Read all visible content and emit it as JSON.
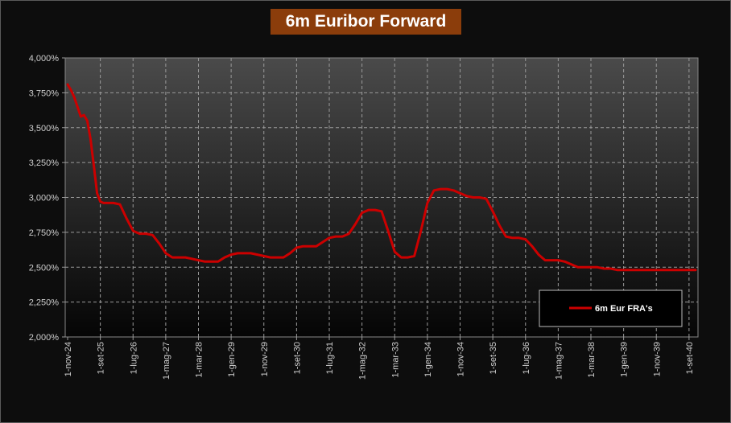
{
  "chart_data": {
    "type": "line",
    "title": "6m Euribor Forward",
    "xlabel": "",
    "ylabel": "",
    "ylim": [
      0.02,
      0.04
    ],
    "y_tick_labels": [
      "2,000%",
      "2,250%",
      "2,500%",
      "2,750%",
      "3,000%",
      "3,250%",
      "3,500%",
      "3,750%",
      "4,000%"
    ],
    "x_tick_labels": [
      "1-nov-24",
      "1-set-25",
      "1-lug-26",
      "1-mag-27",
      "1-mar-28",
      "1-gen-29",
      "1-nov-29",
      "1-set-30",
      "1-lug-31",
      "1-mag-32",
      "1-mar-33",
      "1-gen-34",
      "1-nov-34",
      "1-set-35",
      "1-lug-36",
      "1-mag-37",
      "1-mar-38",
      "1-gen-39",
      "1-nov-39",
      "1-set-40"
    ],
    "grid": true,
    "legend_position": "bottom-right",
    "series": [
      {
        "name": "6m Eur FRA's",
        "color": "#cc0000",
        "x": [
          "1-nov-24",
          "1-dic-24",
          "1-gen-25",
          "1-feb-25",
          "1-mar-25",
          "1-apr-25",
          "1-mag-25",
          "1-giu-25",
          "1-lug-25",
          "1-ago-25",
          "1-set-25",
          "1-ott-25",
          "1-nov-25",
          "1-gen-26",
          "1-mar-26",
          "1-mag-26",
          "1-lug-26",
          "1-set-26",
          "1-nov-26",
          "1-gen-27",
          "1-mar-27",
          "1-mag-27",
          "1-lug-27",
          "1-set-27",
          "1-nov-27",
          "1-gen-28",
          "1-mar-28",
          "1-mag-28",
          "1-lug-28",
          "1-set-28",
          "1-nov-28",
          "1-gen-29",
          "1-mar-29",
          "1-mag-29",
          "1-lug-29",
          "1-set-29",
          "1-nov-29",
          "1-gen-30",
          "1-mar-30",
          "1-mag-30",
          "1-lug-30",
          "1-set-30",
          "1-nov-30",
          "1-gen-31",
          "1-mar-31",
          "1-mag-31",
          "1-lug-31",
          "1-set-31",
          "1-nov-31",
          "1-gen-32",
          "1-mar-32",
          "1-mag-32",
          "1-lug-32",
          "1-set-32",
          "1-nov-32",
          "1-gen-33",
          "1-mar-33",
          "1-mag-33",
          "1-lug-33",
          "1-set-33",
          "1-nov-33",
          "1-gen-34",
          "1-mar-34",
          "1-mag-34",
          "1-lug-34",
          "1-set-34",
          "1-nov-34",
          "1-gen-35",
          "1-mar-35",
          "1-mag-35",
          "1-lug-35",
          "1-set-35",
          "1-nov-35",
          "1-gen-36",
          "1-mar-36",
          "1-mag-36",
          "1-lug-36",
          "1-set-36",
          "1-nov-36",
          "1-gen-37",
          "1-mar-37",
          "1-mag-37",
          "1-lug-37",
          "1-set-37",
          "1-nov-37",
          "1-gen-38",
          "1-mar-38",
          "1-mag-38",
          "1-lug-38",
          "1-set-38",
          "1-nov-38",
          "1-gen-39",
          "1-mar-39",
          "1-mag-39",
          "1-lug-39",
          "1-set-39",
          "1-nov-39",
          "1-gen-40",
          "1-mar-40",
          "1-mag-40",
          "1-lug-40",
          "1-set-40",
          "1-nov-40"
        ],
        "values": [
          0.0381,
          0.0377,
          0.0372,
          0.0365,
          0.0358,
          0.0359,
          0.0355,
          0.0342,
          0.0323,
          0.0303,
          0.0297,
          0.0296,
          0.0296,
          0.0296,
          0.0295,
          0.0285,
          0.0276,
          0.0274,
          0.0274,
          0.0273,
          0.0267,
          0.026,
          0.0257,
          0.0257,
          0.0257,
          0.0256,
          0.0255,
          0.0254,
          0.0254,
          0.0254,
          0.0257,
          0.0259,
          0.026,
          0.026,
          0.026,
          0.0259,
          0.0258,
          0.0257,
          0.0257,
          0.0257,
          0.026,
          0.0264,
          0.0265,
          0.0265,
          0.0265,
          0.0268,
          0.0271,
          0.0272,
          0.0272,
          0.0274,
          0.0281,
          0.0289,
          0.0291,
          0.0291,
          0.029,
          0.0276,
          0.0261,
          0.0257,
          0.0257,
          0.0258,
          0.0276,
          0.0296,
          0.0305,
          0.0306,
          0.0306,
          0.0305,
          0.0303,
          0.0301,
          0.03,
          0.03,
          0.0299,
          0.029,
          0.028,
          0.0272,
          0.0271,
          0.0271,
          0.027,
          0.0265,
          0.0259,
          0.0255,
          0.0255,
          0.0255,
          0.0254,
          0.0252,
          0.025,
          0.025,
          0.025,
          0.025,
          0.0249,
          0.0249,
          0.0248,
          0.0248,
          0.0248,
          0.0248,
          0.0248,
          0.0248,
          0.0248,
          0.0248,
          0.0248,
          0.0248,
          0.0248,
          0.0248,
          0.0248
        ]
      }
    ]
  }
}
